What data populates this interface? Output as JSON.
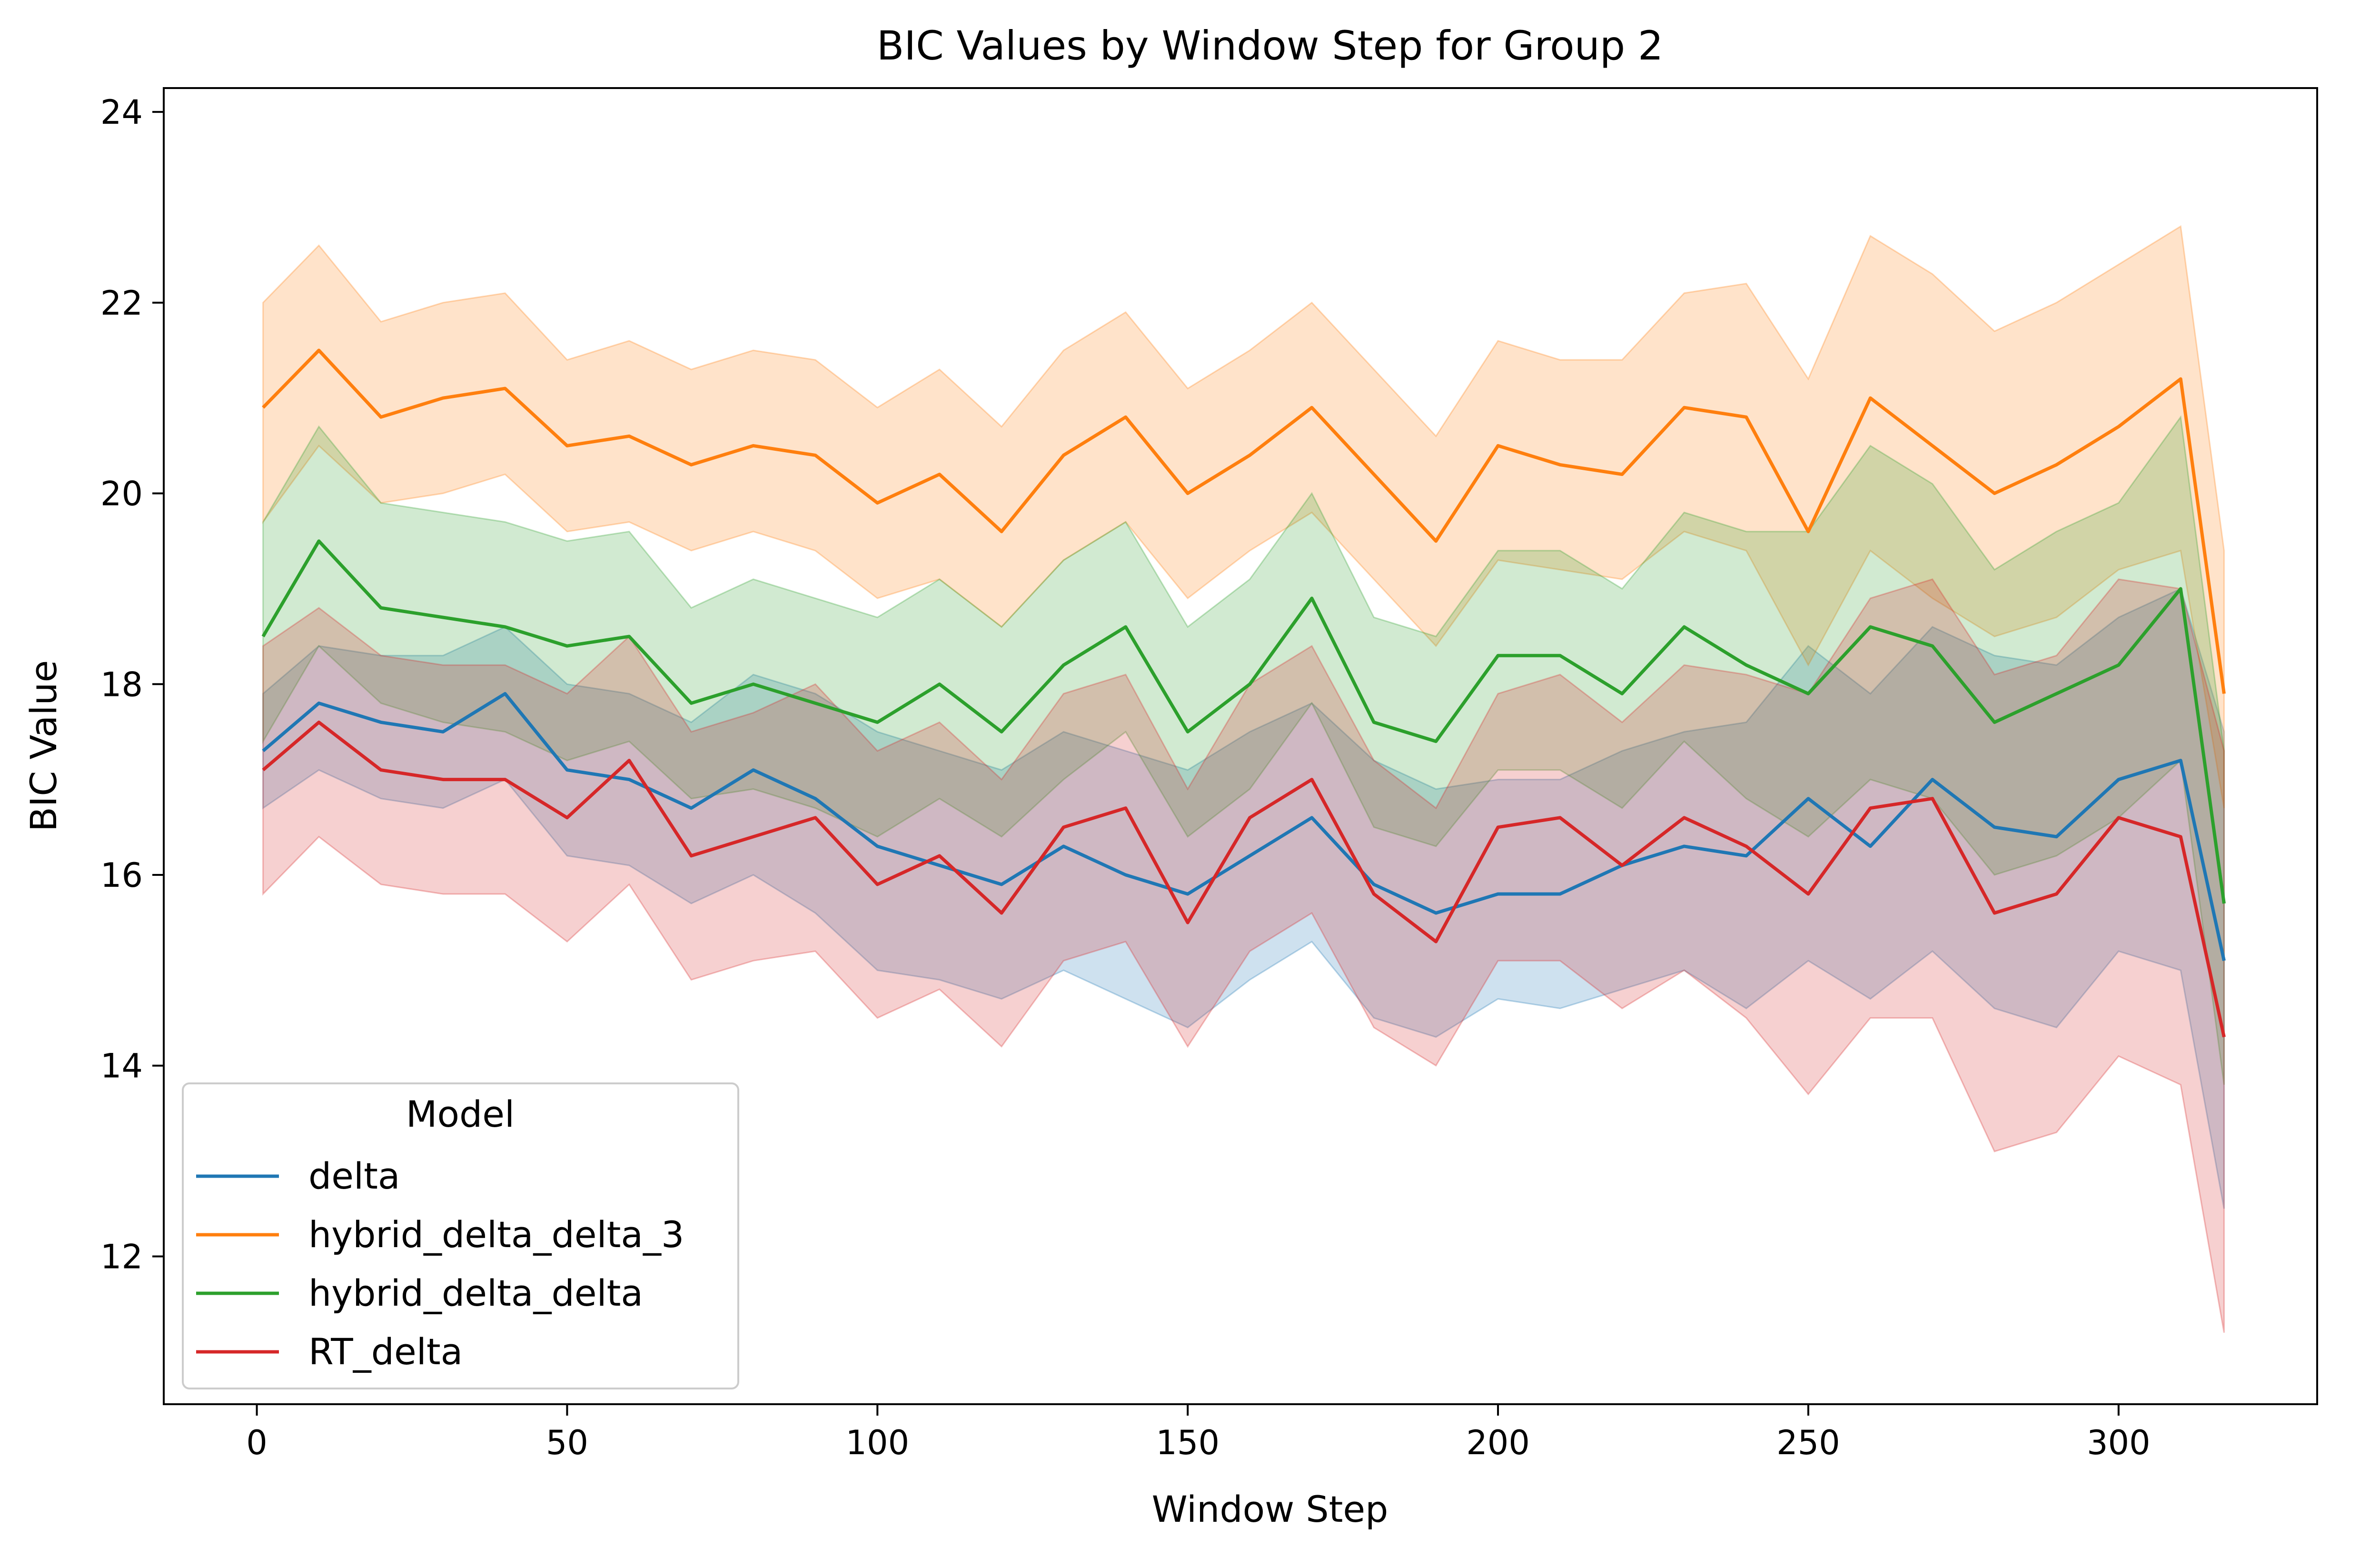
{
  "chart_data": {
    "type": "line",
    "title": "BIC Values by Window Step for Group 2",
    "xlabel": "Window Step",
    "ylabel": "BIC Value",
    "xlim": [
      -15,
      332
    ],
    "ylim": [
      10.45,
      24.25
    ],
    "xticks": [
      0,
      50,
      100,
      150,
      200,
      250,
      300
    ],
    "yticks": [
      12,
      14,
      16,
      18,
      20,
      22,
      24
    ],
    "grid": false,
    "legend": {
      "title": "Model",
      "placement": "lower-left"
    },
    "x": [
      1,
      10,
      20,
      30,
      40,
      50,
      60,
      70,
      80,
      90,
      100,
      110,
      120,
      130,
      140,
      150,
      160,
      170,
      180,
      190,
      200,
      210,
      220,
      230,
      240,
      250,
      260,
      270,
      280,
      290,
      300,
      310,
      317
    ],
    "series": [
      {
        "name": "delta",
        "color": "#1f77b4",
        "values": [
          17.3,
          17.8,
          17.6,
          17.5,
          17.9,
          17.1,
          17.0,
          16.7,
          17.1,
          16.8,
          16.3,
          16.1,
          15.9,
          16.3,
          16.0,
          15.8,
          16.2,
          16.6,
          15.9,
          15.6,
          15.8,
          15.8,
          16.1,
          16.3,
          16.2,
          16.8,
          16.3,
          17.0,
          16.5,
          16.4,
          17.0,
          17.2,
          15.1
        ],
        "lower": [
          16.7,
          17.1,
          16.8,
          16.7,
          17.0,
          16.2,
          16.1,
          15.7,
          16.0,
          15.6,
          15.0,
          14.9,
          14.7,
          15.0,
          14.7,
          14.4,
          14.9,
          15.3,
          14.5,
          14.3,
          14.7,
          14.6,
          14.8,
          15.0,
          14.6,
          15.1,
          14.7,
          15.2,
          14.6,
          14.4,
          15.2,
          15.0,
          12.5
        ],
        "upper": [
          17.9,
          18.4,
          18.3,
          18.3,
          18.6,
          18.0,
          17.9,
          17.6,
          18.1,
          17.9,
          17.5,
          17.3,
          17.1,
          17.5,
          17.3,
          17.1,
          17.5,
          17.8,
          17.2,
          16.9,
          17.0,
          17.0,
          17.3,
          17.5,
          17.6,
          18.4,
          17.9,
          18.6,
          18.3,
          18.2,
          18.7,
          19.0,
          17.5
        ]
      },
      {
        "name": "hybrid_delta_delta_3",
        "color": "#ff7f0e",
        "values": [
          20.9,
          21.5,
          20.8,
          21.0,
          21.1,
          20.5,
          20.6,
          20.3,
          20.5,
          20.4,
          19.9,
          20.2,
          19.6,
          20.4,
          20.8,
          20.0,
          20.4,
          20.9,
          20.2,
          19.5,
          20.5,
          20.3,
          20.2,
          20.9,
          20.8,
          19.6,
          21.0,
          20.5,
          20.0,
          20.3,
          20.7,
          21.2,
          17.9
        ],
        "lower": [
          19.7,
          20.5,
          19.9,
          20.0,
          20.2,
          19.6,
          19.7,
          19.4,
          19.6,
          19.4,
          18.9,
          19.1,
          18.6,
          19.3,
          19.7,
          18.9,
          19.4,
          19.8,
          19.1,
          18.4,
          19.3,
          19.2,
          19.1,
          19.6,
          19.4,
          18.2,
          19.4,
          18.9,
          18.5,
          18.7,
          19.2,
          19.4,
          16.7
        ],
        "upper": [
          22.0,
          22.6,
          21.8,
          22.0,
          22.1,
          21.4,
          21.6,
          21.3,
          21.5,
          21.4,
          20.9,
          21.3,
          20.7,
          21.5,
          21.9,
          21.1,
          21.5,
          22.0,
          21.3,
          20.6,
          21.6,
          21.4,
          21.4,
          22.1,
          22.2,
          21.2,
          22.7,
          22.3,
          21.7,
          22.0,
          22.4,
          22.8,
          19.4
        ]
      },
      {
        "name": "hybrid_delta_delta",
        "color": "#2ca02c",
        "values": [
          18.5,
          19.5,
          18.8,
          18.7,
          18.6,
          18.4,
          18.5,
          17.8,
          18.0,
          17.8,
          17.6,
          18.0,
          17.5,
          18.2,
          18.6,
          17.5,
          18.0,
          18.9,
          17.6,
          17.4,
          18.3,
          18.3,
          17.9,
          18.6,
          18.2,
          17.9,
          18.6,
          18.4,
          17.6,
          17.9,
          18.2,
          19.0,
          15.7
        ],
        "lower": [
          17.4,
          18.4,
          17.8,
          17.6,
          17.5,
          17.2,
          17.4,
          16.8,
          16.9,
          16.7,
          16.4,
          16.8,
          16.4,
          17.0,
          17.5,
          16.4,
          16.9,
          17.8,
          16.5,
          16.3,
          17.1,
          17.1,
          16.7,
          17.4,
          16.8,
          16.4,
          17.0,
          16.8,
          16.0,
          16.2,
          16.6,
          17.2,
          13.8
        ],
        "upper": [
          19.7,
          20.7,
          19.9,
          19.8,
          19.7,
          19.5,
          19.6,
          18.8,
          19.1,
          18.9,
          18.7,
          19.1,
          18.6,
          19.3,
          19.7,
          18.6,
          19.1,
          20.0,
          18.7,
          18.5,
          19.4,
          19.4,
          19.0,
          19.8,
          19.6,
          19.6,
          20.5,
          20.1,
          19.2,
          19.6,
          19.9,
          20.8,
          17.3
        ]
      },
      {
        "name": "RT_delta",
        "color": "#d62728",
        "values": [
          17.1,
          17.6,
          17.1,
          17.0,
          17.0,
          16.6,
          17.2,
          16.2,
          16.4,
          16.6,
          15.9,
          16.2,
          15.6,
          16.5,
          16.7,
          15.5,
          16.6,
          17.0,
          15.8,
          15.3,
          16.5,
          16.6,
          16.1,
          16.6,
          16.3,
          15.8,
          16.7,
          16.8,
          15.6,
          15.8,
          16.6,
          16.4,
          14.3
        ],
        "lower": [
          15.8,
          16.4,
          15.9,
          15.8,
          15.8,
          15.3,
          15.9,
          14.9,
          15.1,
          15.2,
          14.5,
          14.8,
          14.2,
          15.1,
          15.3,
          14.2,
          15.2,
          15.6,
          14.4,
          14.0,
          15.1,
          15.1,
          14.6,
          15.0,
          14.5,
          13.7,
          14.5,
          14.5,
          13.1,
          13.3,
          14.1,
          13.8,
          11.2
        ],
        "upper": [
          18.4,
          18.8,
          18.3,
          18.2,
          18.2,
          17.9,
          18.5,
          17.5,
          17.7,
          18.0,
          17.3,
          17.6,
          17.0,
          17.9,
          18.1,
          16.9,
          18.0,
          18.4,
          17.2,
          16.7,
          17.9,
          18.1,
          17.6,
          18.2,
          18.1,
          17.9,
          18.9,
          19.1,
          18.1,
          18.3,
          19.1,
          19.0,
          17.3
        ]
      }
    ]
  }
}
